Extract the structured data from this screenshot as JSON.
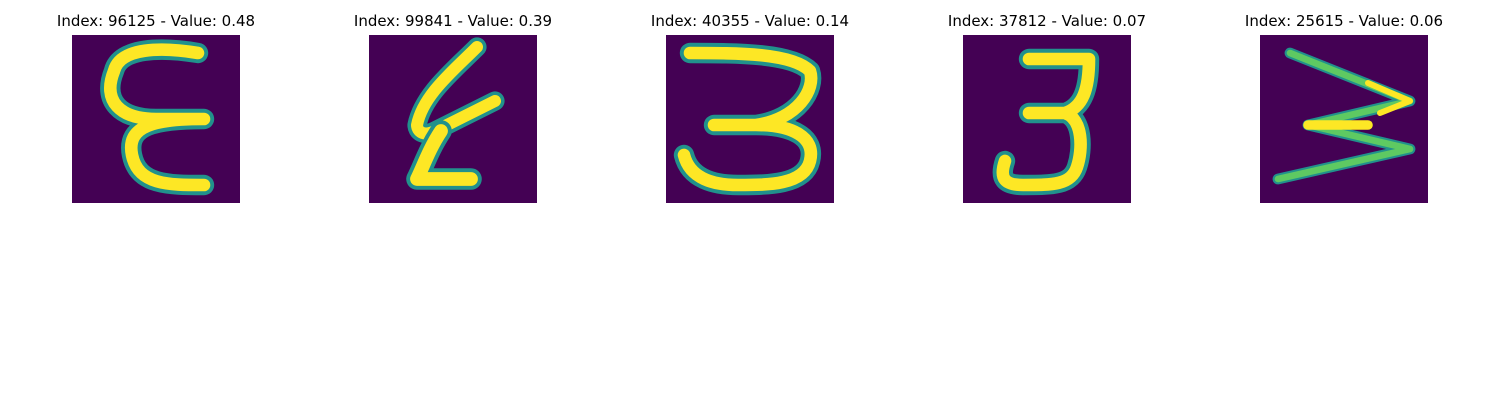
{
  "colormap": {
    "background": "#440154",
    "low": "#3b528b",
    "mid": "#21918c",
    "high": "#5ec962",
    "peak": "#fde725"
  },
  "panels": [
    {
      "title": "Index: 96125 - Value: 0.48",
      "digit": "ε-shaped handwritten glyph"
    },
    {
      "title": "Index: 99841 - Value: 0.39",
      "digit": "slanted 4-like handwritten glyph"
    },
    {
      "title": "Index: 40355 - Value: 0.14",
      "digit": "handwritten 3"
    },
    {
      "title": "Index: 37812 - Value: 0.07",
      "digit": "handwritten 3"
    },
    {
      "title": "Index: 25615 - Value: 0.06",
      "digit": "thin handwritten 3"
    }
  ]
}
